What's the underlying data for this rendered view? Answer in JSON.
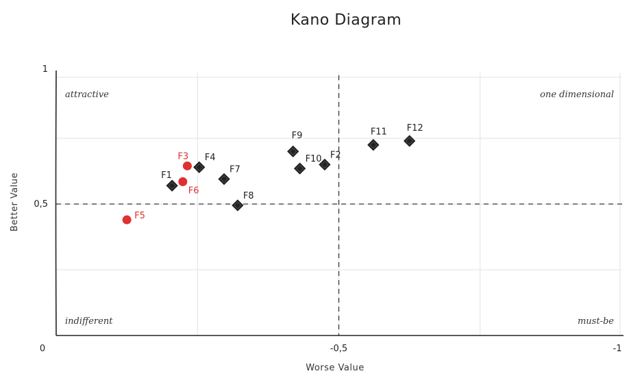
{
  "chart_data": {
    "type": "scatter",
    "title": "Kano Diagram",
    "xlabel": "Worse Value",
    "ylabel": "Better Value",
    "xlim": [
      0,
      -1
    ],
    "ylim": [
      0,
      1
    ],
    "x_ticks": [
      {
        "value": 0,
        "label": "0"
      },
      {
        "value": -0.5,
        "label": "-0,5"
      },
      {
        "value": -1,
        "label": "-1"
      }
    ],
    "y_ticks": [
      {
        "value": 1,
        "label": "1"
      },
      {
        "value": 0.5,
        "label": "0,5"
      }
    ],
    "grid": true,
    "threshold_lines": {
      "x": -0.5,
      "y": 0.5
    },
    "quadrants": {
      "top_left": "attractive",
      "top_right": "one dimensional",
      "bottom_left": "indifferent",
      "bottom_right": "must-be"
    },
    "series": [
      {
        "marker": "diamond",
        "color": "#222222",
        "points": [
          {
            "label": "F1",
            "x": -0.205,
            "y": 0.57
          },
          {
            "label": "F2",
            "x": -0.475,
            "y": 0.65
          },
          {
            "label": "F4",
            "x": -0.253,
            "y": 0.64
          },
          {
            "label": "F7",
            "x": -0.297,
            "y": 0.595
          },
          {
            "label": "F8",
            "x": -0.321,
            "y": 0.495
          },
          {
            "label": "F9",
            "x": -0.419,
            "y": 0.7
          },
          {
            "label": "F10",
            "x": -0.431,
            "y": 0.635
          },
          {
            "label": "F11",
            "x": -0.561,
            "y": 0.725
          },
          {
            "label": "F12",
            "x": -0.625,
            "y": 0.74
          }
        ]
      },
      {
        "marker": "circle",
        "color": "#e03131",
        "points": [
          {
            "label": "F3",
            "x": -0.232,
            "y": 0.645
          },
          {
            "label": "F5",
            "x": -0.125,
            "y": 0.44
          },
          {
            "label": "F6",
            "x": -0.224,
            "y": 0.585
          }
        ]
      }
    ]
  }
}
